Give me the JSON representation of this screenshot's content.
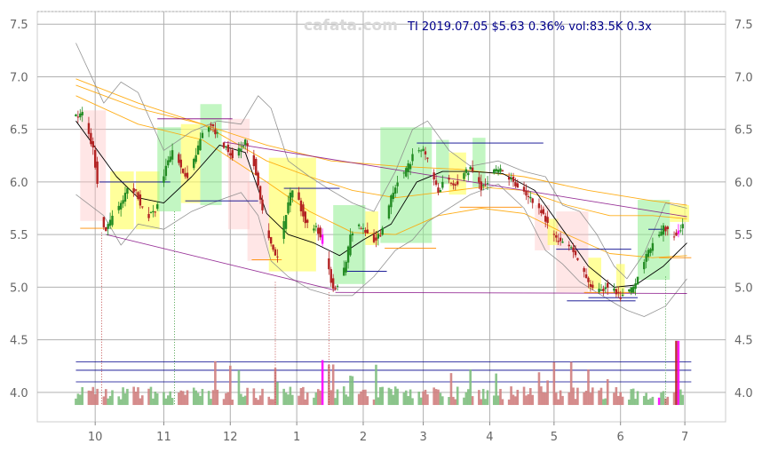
{
  "watermark": "cafata.com",
  "info": "TI 2019.07.05 $5.63 0.36% vol:83.5K 0.3x",
  "colors": {
    "info": "#00008b",
    "up": "#228b22",
    "down": "#b22222",
    "highlight": "#ff00ff",
    "up_zone": "#90ee90",
    "down_zone": "#ffc0c0",
    "yellow_zone": "#ffff66",
    "grid": "#b0b0b0",
    "sma": "#000000",
    "bollinger": "#888888",
    "ma_long": "#ffa500",
    "trend": "#800080"
  },
  "chart_data": {
    "type": "candlestick",
    "y_ticks": [
      "7.5",
      "7.0",
      "6.5",
      "6.0",
      "5.5",
      "5.0",
      "4.5",
      "4.0"
    ],
    "y_tick_values": [
      7.5,
      7.0,
      6.5,
      6.0,
      5.5,
      5.0,
      4.5,
      4.0
    ],
    "ylim": [
      3.72,
      7.62
    ],
    "x_ticks": [
      "10",
      "11",
      "12",
      "1",
      "2",
      "3",
      "4",
      "5",
      "6",
      "7"
    ],
    "x_tick_days": [
      10,
      42,
      73,
      104,
      135,
      163,
      194,
      224,
      255,
      285
    ],
    "xlim": [
      -17,
      304
    ],
    "grid": true,
    "price_path": [
      [
        1,
        6.62
      ],
      [
        4,
        6.68
      ],
      [
        6,
        6.55
      ],
      [
        9,
        6.3
      ],
      [
        11,
        5.98
      ],
      [
        13,
        5.6
      ],
      [
        15,
        5.52
      ],
      [
        17,
        5.63
      ],
      [
        20,
        5.72
      ],
      [
        23,
        5.82
      ],
      [
        26,
        5.98
      ],
      [
        29,
        5.9
      ],
      [
        31,
        5.78
      ],
      [
        33,
        5.72
      ],
      [
        35,
        5.68
      ],
      [
        38,
        5.72
      ],
      [
        40,
        5.9
      ],
      [
        43,
        6.15
      ],
      [
        46,
        6.3
      ],
      [
        48,
        6.25
      ],
      [
        50,
        6.12
      ],
      [
        53,
        6.02
      ],
      [
        56,
        6.2
      ],
      [
        59,
        6.4
      ],
      [
        61,
        6.48
      ],
      [
        64,
        6.55
      ],
      [
        66,
        6.48
      ],
      [
        68,
        6.42
      ],
      [
        71,
        6.32
      ],
      [
        74,
        6.25
      ],
      [
        77,
        6.3
      ],
      [
        80,
        6.38
      ],
      [
        82,
        6.3
      ],
      [
        84,
        6.18
      ],
      [
        86,
        5.95
      ],
      [
        88,
        5.72
      ],
      [
        91,
        5.45
      ],
      [
        94,
        5.28
      ],
      [
        96,
        5.32
      ],
      [
        98,
        5.6
      ],
      [
        101,
        5.88
      ],
      [
        103,
        5.95
      ],
      [
        106,
        5.75
      ],
      [
        108,
        5.6
      ],
      [
        111,
        5.55
      ],
      [
        113,
        5.58
      ],
      [
        116,
        5.42
      ],
      [
        119,
        5.15
      ],
      [
        121,
        4.98
      ],
      [
        124,
        5.05
      ],
      [
        127,
        5.22
      ],
      [
        129,
        5.5
      ],
      [
        132,
        5.6
      ],
      [
        135,
        5.55
      ],
      [
        138,
        5.5
      ],
      [
        140,
        5.45
      ],
      [
        143,
        5.5
      ],
      [
        146,
        5.65
      ],
      [
        148,
        5.88
      ],
      [
        151,
        6.02
      ],
      [
        154,
        6.08
      ],
      [
        157,
        6.2
      ],
      [
        159,
        6.3
      ],
      [
        162,
        6.32
      ],
      [
        165,
        6.22
      ],
      [
        167,
        6.05
      ],
      [
        170,
        5.9
      ],
      [
        172,
        6.0
      ],
      [
        175,
        6.02
      ],
      [
        178,
        5.98
      ],
      [
        180,
        6.02
      ],
      [
        182,
        6.08
      ],
      [
        185,
        6.12
      ],
      [
        188,
        6.05
      ],
      [
        190,
        5.95
      ],
      [
        193,
        6.0
      ],
      [
        196,
        6.1
      ],
      [
        198,
        6.12
      ],
      [
        201,
        6.08
      ],
      [
        204,
        6.02
      ],
      [
        207,
        5.97
      ],
      [
        210,
        5.92
      ],
      [
        212,
        5.85
      ],
      [
        215,
        5.82
      ],
      [
        218,
        5.72
      ],
      [
        221,
        5.6
      ],
      [
        223,
        5.5
      ],
      [
        226,
        5.45
      ],
      [
        229,
        5.42
      ],
      [
        232,
        5.38
      ],
      [
        234,
        5.28
      ],
      [
        237,
        5.15
      ],
      [
        240,
        5.05
      ],
      [
        243,
        4.98
      ],
      [
        246,
        4.96
      ],
      [
        248,
        5.02
      ],
      [
        251,
        4.98
      ],
      [
        254,
        4.92
      ],
      [
        256,
        4.9
      ],
      [
        259,
        4.95
      ],
      [
        262,
        5.02
      ],
      [
        265,
        5.18
      ],
      [
        267,
        5.3
      ],
      [
        270,
        5.42
      ],
      [
        273,
        5.5
      ],
      [
        275,
        5.56
      ],
      [
        278,
        5.52
      ],
      [
        281,
        5.48
      ],
      [
        284,
        5.58
      ],
      [
        286,
        5.63
      ]
    ],
    "sma": [
      [
        1,
        6.58
      ],
      [
        20,
        6.05
      ],
      [
        30,
        5.85
      ],
      [
        42,
        5.8
      ],
      [
        55,
        6.05
      ],
      [
        68,
        6.35
      ],
      [
        80,
        6.28
      ],
      [
        90,
        5.7
      ],
      [
        100,
        5.5
      ],
      [
        112,
        5.42
      ],
      [
        124,
        5.3
      ],
      [
        135,
        5.45
      ],
      [
        148,
        5.6
      ],
      [
        160,
        6.0
      ],
      [
        172,
        6.1
      ],
      [
        185,
        6.1
      ],
      [
        200,
        6.08
      ],
      [
        215,
        5.92
      ],
      [
        228,
        5.55
      ],
      [
        240,
        5.2
      ],
      [
        252,
        5.0
      ],
      [
        262,
        5.02
      ],
      [
        275,
        5.2
      ],
      [
        286,
        5.42
      ]
    ],
    "bollinger_upper": [
      [
        1,
        7.32
      ],
      [
        14,
        6.75
      ],
      [
        22,
        6.95
      ],
      [
        30,
        6.85
      ],
      [
        42,
        6.3
      ],
      [
        55,
        6.48
      ],
      [
        67,
        6.58
      ],
      [
        78,
        6.55
      ],
      [
        86,
        6.82
      ],
      [
        92,
        6.7
      ],
      [
        100,
        6.2
      ],
      [
        110,
        6.05
      ],
      [
        120,
        5.92
      ],
      [
        130,
        5.8
      ],
      [
        140,
        5.72
      ],
      [
        150,
        6.1
      ],
      [
        158,
        6.5
      ],
      [
        165,
        6.58
      ],
      [
        175,
        6.3
      ],
      [
        185,
        6.15
      ],
      [
        198,
        6.2
      ],
      [
        210,
        6.1
      ],
      [
        220,
        6.05
      ],
      [
        228,
        5.78
      ],
      [
        236,
        5.72
      ],
      [
        244,
        5.5
      ],
      [
        252,
        5.2
      ],
      [
        258,
        5.08
      ],
      [
        266,
        5.32
      ],
      [
        276,
        5.8
      ],
      [
        286,
        5.75
      ]
    ],
    "bollinger_lower": [
      [
        1,
        5.88
      ],
      [
        14,
        5.68
      ],
      [
        22,
        5.4
      ],
      [
        30,
        5.6
      ],
      [
        42,
        5.55
      ],
      [
        55,
        5.72
      ],
      [
        67,
        5.82
      ],
      [
        78,
        5.9
      ],
      [
        86,
        5.68
      ],
      [
        92,
        5.25
      ],
      [
        100,
        5.1
      ],
      [
        110,
        4.98
      ],
      [
        120,
        4.92
      ],
      [
        130,
        4.92
      ],
      [
        140,
        5.1
      ],
      [
        150,
        5.35
      ],
      [
        158,
        5.45
      ],
      [
        165,
        5.62
      ],
      [
        175,
        5.75
      ],
      [
        185,
        5.88
      ],
      [
        198,
        5.98
      ],
      [
        210,
        5.75
      ],
      [
        220,
        5.35
      ],
      [
        228,
        5.22
      ],
      [
        236,
        5.05
      ],
      [
        244,
        4.95
      ],
      [
        252,
        4.85
      ],
      [
        258,
        4.78
      ],
      [
        266,
        4.72
      ],
      [
        276,
        4.82
      ],
      [
        286,
        5.08
      ]
    ],
    "ma_long_1": [
      [
        1,
        6.98
      ],
      [
        30,
        6.75
      ],
      [
        60,
        6.55
      ],
      [
        90,
        6.35
      ],
      [
        120,
        6.2
      ],
      [
        150,
        6.15
      ],
      [
        180,
        6.12
      ],
      [
        210,
        6.05
      ],
      [
        240,
        5.92
      ],
      [
        270,
        5.82
      ],
      [
        286,
        5.78
      ]
    ],
    "ma_long_2": [
      [
        1,
        6.92
      ],
      [
        30,
        6.7
      ],
      [
        60,
        6.55
      ],
      [
        90,
        6.2
      ],
      [
        110,
        6.05
      ],
      [
        130,
        5.92
      ],
      [
        150,
        5.85
      ],
      [
        170,
        5.9
      ],
      [
        190,
        5.95
      ],
      [
        210,
        5.92
      ],
      [
        230,
        5.78
      ],
      [
        250,
        5.68
      ],
      [
        270,
        5.68
      ],
      [
        286,
        5.65
      ]
    ],
    "ma_long_3": [
      [
        1,
        6.82
      ],
      [
        30,
        6.55
      ],
      [
        60,
        6.4
      ],
      [
        90,
        6.0
      ],
      [
        110,
        5.72
      ],
      [
        130,
        5.52
      ],
      [
        150,
        5.5
      ],
      [
        170,
        5.68
      ],
      [
        190,
        5.75
      ],
      [
        210,
        5.7
      ],
      [
        230,
        5.5
      ],
      [
        250,
        5.32
      ],
      [
        270,
        5.28
      ],
      [
        286,
        5.3
      ]
    ],
    "trend_lines": [
      [
        [
          70,
          6.38
        ],
        [
          286,
          5.67
        ]
      ],
      [
        [
          15,
          5.5
        ],
        [
          122,
          4.97
        ]
      ],
      [
        [
          122,
          4.95
        ],
        [
          286,
          4.94
        ]
      ]
    ],
    "zones": [
      {
        "kind": "down",
        "x0": 3,
        "x1": 15,
        "y0": 5.63,
        "y1": 6.68
      },
      {
        "kind": "yellow",
        "x0": 17,
        "x1": 28,
        "y0": 5.55,
        "y1": 6.1
      },
      {
        "kind": "yellow",
        "x0": 29,
        "x1": 40,
        "y0": 5.55,
        "y1": 6.1
      },
      {
        "kind": "up",
        "x0": 39,
        "x1": 50,
        "y0": 5.72,
        "y1": 6.52
      },
      {
        "kind": "yellow",
        "x0": 50,
        "x1": 59,
        "y0": 5.8,
        "y1": 6.55
      },
      {
        "kind": "up",
        "x0": 59,
        "x1": 69,
        "y0": 5.78,
        "y1": 6.74
      },
      {
        "kind": "down",
        "x0": 72,
        "x1": 82,
        "y0": 5.55,
        "y1": 6.6
      },
      {
        "kind": "down",
        "x0": 81,
        "x1": 91,
        "y0": 5.25,
        "y1": 6.0
      },
      {
        "kind": "yellow",
        "x0": 91,
        "x1": 113,
        "y0": 5.15,
        "y1": 6.23
      },
      {
        "kind": "up",
        "x0": 121,
        "x1": 136,
        "y0": 5.03,
        "y1": 5.78
      },
      {
        "kind": "yellow",
        "x0": 136,
        "x1": 142,
        "y0": 5.4,
        "y1": 5.72
      },
      {
        "kind": "up",
        "x0": 143,
        "x1": 167,
        "y0": 5.42,
        "y1": 6.52
      },
      {
        "kind": "up",
        "x0": 169,
        "x1": 175,
        "y0": 5.98,
        "y1": 6.4
      },
      {
        "kind": "yellow",
        "x0": 175,
        "x1": 183,
        "y0": 5.88,
        "y1": 6.28
      },
      {
        "kind": "up",
        "x0": 186,
        "x1": 192,
        "y0": 5.95,
        "y1": 6.42
      },
      {
        "kind": "down",
        "x0": 215,
        "x1": 222,
        "y0": 5.35,
        "y1": 5.78
      },
      {
        "kind": "yellow",
        "x0": 221,
        "x1": 226,
        "y0": 5.4,
        "y1": 5.65
      },
      {
        "kind": "down",
        "x0": 225,
        "x1": 240,
        "y0": 4.95,
        "y1": 5.72
      },
      {
        "kind": "yellow",
        "x0": 240,
        "x1": 246,
        "y0": 4.98,
        "y1": 5.28
      },
      {
        "kind": "yellow",
        "x0": 253,
        "x1": 257,
        "y0": 4.92,
        "y1": 5.22
      },
      {
        "kind": "up",
        "x0": 263,
        "x1": 278,
        "y0": 5.07,
        "y1": 5.83
      },
      {
        "kind": "yellow",
        "x0": 278,
        "x1": 287,
        "y0": 5.62,
        "y1": 5.78
      }
    ],
    "support_lines": [
      {
        "color": "#800080",
        "x0": 39,
        "x1": 74,
        "y": 6.6
      },
      {
        "color": "#00008b",
        "x0": 12,
        "x1": 45,
        "y": 6.0
      },
      {
        "color": "#00008b",
        "x0": 52,
        "x1": 86,
        "y": 5.82
      },
      {
        "color": "#00008b",
        "x0": 98,
        "x1": 124,
        "y": 5.94
      },
      {
        "color": "#00008b",
        "x0": 126,
        "x1": 146,
        "y": 5.15
      },
      {
        "color": "#00008b",
        "x0": 160,
        "x1": 219,
        "y": 6.37
      },
      {
        "color": "#00008b",
        "x0": 225,
        "x1": 260,
        "y": 5.36
      },
      {
        "color": "#00008b",
        "x0": 230,
        "x1": 262,
        "y": 4.87
      },
      {
        "color": "#00008b",
        "x0": 240,
        "x1": 263,
        "y": 4.9
      },
      {
        "color": "#00008b",
        "x0": 268,
        "x1": 276,
        "y": 5.55
      },
      {
        "color": "#ff8c00",
        "x0": 3,
        "x1": 15,
        "y": 5.56
      },
      {
        "color": "#ff8c00",
        "x0": 83,
        "x1": 97,
        "y": 5.26
      },
      {
        "color": "#ff8c00",
        "x0": 145,
        "x1": 169,
        "y": 5.37
      },
      {
        "color": "#ff8c00",
        "x0": 180,
        "x1": 209,
        "y": 5.76
      },
      {
        "color": "#ff8c00",
        "x0": 238,
        "x1": 262,
        "y": 4.95
      },
      {
        "color": "#ff8c00",
        "x0": 273,
        "x1": 288,
        "y": 5.28
      }
    ],
    "volume_ref_lines": [
      4.29,
      4.21,
      4.1
    ],
    "volume_base": 3.88,
    "volume_scale_max": 4.49,
    "event_lines": [
      {
        "x": 13,
        "color": "#b22222",
        "top": 5.52
      },
      {
        "x": 47,
        "color": "#228b22",
        "top": 5.72
      },
      {
        "x": 94,
        "color": "#b22222",
        "top": 5.05
      },
      {
        "x": 119,
        "color": "#b22222",
        "top": 4.95
      },
      {
        "x": 276,
        "color": "#228b22",
        "top": 5.1
      }
    ]
  }
}
